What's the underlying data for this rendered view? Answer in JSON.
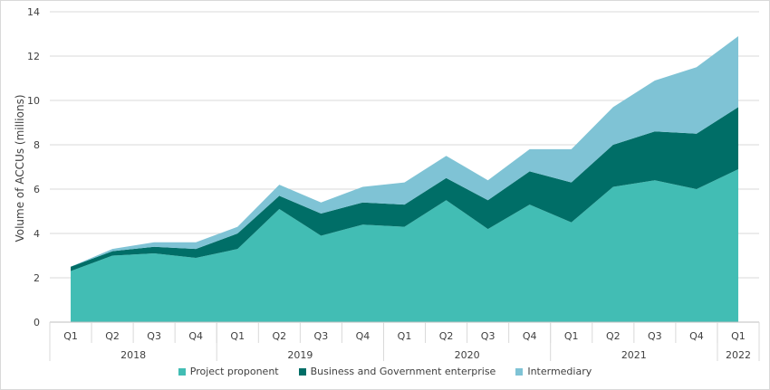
{
  "chart_data": {
    "type": "area",
    "stacked": true,
    "ylabel": "Volume of ACCUs (millions)",
    "ylim": [
      0,
      14
    ],
    "yticks": [
      "0",
      "2",
      "4",
      "6",
      "8",
      "10",
      "12",
      "14"
    ],
    "categories": [
      "Q1",
      "Q2",
      "Q3",
      "Q4",
      "Q1",
      "Q2",
      "Q3",
      "Q4",
      "Q1",
      "Q2",
      "Q3",
      "Q4",
      "Q1",
      "Q2",
      "Q3",
      "Q4",
      "Q1"
    ],
    "year_groups": [
      {
        "label": "2018",
        "count": 4
      },
      {
        "label": "2019",
        "count": 4
      },
      {
        "label": "2020",
        "count": 4
      },
      {
        "label": "2021",
        "count": 4
      },
      {
        "label": "2022",
        "count": 1
      }
    ],
    "series": [
      {
        "name": "Project proponent",
        "color": "#42BDB4",
        "values": [
          2.3,
          3.0,
          3.1,
          2.9,
          3.3,
          5.1,
          3.9,
          4.4,
          4.3,
          5.5,
          4.2,
          5.3,
          4.5,
          6.1,
          6.4,
          6.0,
          6.9
        ]
      },
      {
        "name": "Business and Government enterprise",
        "color": "#006E67",
        "values": [
          0.2,
          0.2,
          0.3,
          0.4,
          0.7,
          0.6,
          1.0,
          1.0,
          1.0,
          1.0,
          1.3,
          1.5,
          1.8,
          1.9,
          2.2,
          2.5,
          2.8
        ]
      },
      {
        "name": "Intermediary",
        "color": "#7FC3D5",
        "values": [
          0.0,
          0.1,
          0.2,
          0.3,
          0.3,
          0.5,
          0.5,
          0.7,
          1.0,
          1.0,
          0.9,
          1.0,
          1.5,
          1.7,
          2.3,
          3.0,
          3.2
        ]
      }
    ],
    "grid": true,
    "legend_position": "bottom"
  }
}
